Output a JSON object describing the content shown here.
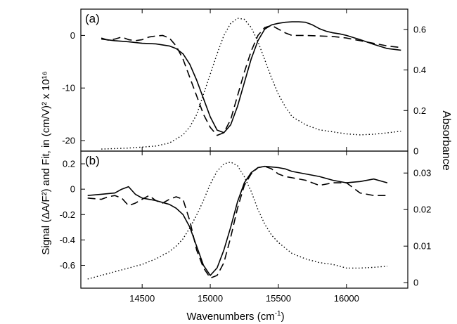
{
  "chart_data": {
    "type": "line",
    "xlabel_main": "Wavenumbers (cm",
    "xlabel_sup": "-1",
    "xlabel_tail": ")",
    "xlim": [
      14050,
      16450
    ],
    "xticks": [
      14500,
      15000,
      15500,
      16000
    ],
    "ylabel_left": "Signal (ΔA/F²) and Fit, in (cm/V)² x 10¹⁶",
    "ylabel_right": "Absorbance",
    "panels": [
      {
        "label": "(a)",
        "left_axis": {
          "lim": [
            -22,
            5
          ],
          "ticks": [
            0,
            -10,
            -20
          ]
        },
        "right_axis": {
          "lim": [
            0,
            0.7
          ],
          "ticks": [
            0,
            0.2,
            0.4,
            0.6
          ]
        },
        "series": [
          {
            "style": "solid",
            "axis": "left",
            "x": [
              14200,
              14300,
              14400,
              14500,
              14600,
              14700,
              14750,
              14800,
              14850,
              14900,
              14950,
              15000,
              15050,
              15100,
              15150,
              15200,
              15250,
              15300,
              15350,
              15400,
              15450,
              15500,
              15550,
              15600,
              15650,
              15700,
              15750,
              15800,
              15850,
              15900,
              15950,
              16000,
              16100,
              16200,
              16300,
              16400
            ],
            "y": [
              -0.7,
              -1,
              -1.2,
              -1.5,
              -1.6,
              -2,
              -2.5,
              -3.5,
              -5.5,
              -8.5,
              -12,
              -15.5,
              -18,
              -18.5,
              -17,
              -13.5,
              -9,
              -4.5,
              -1,
              1.2,
              2,
              2.3,
              2.5,
              2.6,
              2.6,
              2.5,
              2,
              1.3,
              0.8,
              0.5,
              0.3,
              0,
              -0.8,
              -1.7,
              -2.5,
              -2.8
            ]
          },
          {
            "style": "dashed",
            "axis": "left",
            "x": [
              14200,
              14250,
              14300,
              14350,
              14400,
              14450,
              14500,
              14550,
              14600,
              14650,
              14700,
              14750,
              14800,
              14850,
              14900,
              14950,
              15000,
              15050,
              15100,
              15150,
              15200,
              15250,
              15300,
              15350,
              15400,
              15450,
              15500,
              15550,
              15600,
              15700,
              15800,
              15900,
              16000,
              16100,
              16200,
              16300,
              16400
            ],
            "y": [
              -0.5,
              -0.9,
              -0.7,
              -0.3,
              -0.8,
              -1,
              -0.8,
              -0.3,
              -0.1,
              0,
              -0.5,
              -2,
              -4.5,
              -8,
              -11.5,
              -15,
              -17.5,
              -19,
              -18.5,
              -16,
              -11.5,
              -7,
              -3,
              0,
              1.5,
              1.9,
              1.2,
              0.5,
              0,
              0,
              -0.1,
              -0.2,
              -0.5,
              -1,
              -1.5,
              -2,
              -2.3
            ]
          },
          {
            "style": "dotted",
            "axis": "right",
            "x": [
              14200,
              14400,
              14600,
              14700,
              14800,
              14850,
              14900,
              14950,
              15000,
              15050,
              15100,
              15150,
              15200,
              15250,
              15300,
              15350,
              15400,
              15450,
              15500,
              15550,
              15600,
              15700,
              15800,
              15900,
              16000,
              16100,
              16200,
              16300,
              16400
            ],
            "y": [
              0.01,
              0.015,
              0.025,
              0.04,
              0.08,
              0.12,
              0.18,
              0.28,
              0.38,
              0.48,
              0.57,
              0.63,
              0.655,
              0.65,
              0.61,
              0.54,
              0.45,
              0.36,
              0.28,
              0.22,
              0.17,
              0.13,
              0.105,
              0.095,
              0.085,
              0.08,
              0.083,
              0.09,
              0.098
            ]
          }
        ]
      },
      {
        "label": "(b)",
        "left_axis": {
          "lim": [
            -0.78,
            0.3
          ],
          "ticks": [
            0.2,
            0,
            -0.2,
            -0.4,
            -0.6
          ]
        },
        "right_axis": {
          "lim": [
            -0.0015,
            0.036
          ],
          "ticks": [
            0,
            0.01,
            0.02,
            0.03
          ]
        },
        "series": [
          {
            "style": "solid",
            "axis": "left",
            "x": [
              14100,
              14200,
              14300,
              14350,
              14400,
              14450,
              14500,
              14600,
              14700,
              14750,
              14800,
              14850,
              14900,
              14950,
              15000,
              15050,
              15100,
              15150,
              15200,
              15250,
              15300,
              15350,
              15400,
              15450,
              15500,
              15550,
              15600,
              15700,
              15800,
              15900,
              16000,
              16100,
              16200,
              16300
            ],
            "y": [
              -0.05,
              -0.04,
              -0.03,
              0,
              0.02,
              -0.04,
              -0.07,
              -0.09,
              -0.12,
              -0.15,
              -0.2,
              -0.3,
              -0.45,
              -0.6,
              -0.68,
              -0.62,
              -0.48,
              -0.3,
              -0.1,
              0.05,
              0.13,
              0.17,
              0.18,
              0.175,
              0.17,
              0.16,
              0.14,
              0.12,
              0.1,
              0.07,
              0.05,
              0.06,
              0.08,
              0.05
            ]
          },
          {
            "style": "dashed",
            "axis": "left",
            "x": [
              14100,
              14200,
              14250,
              14300,
              14350,
              14400,
              14450,
              14500,
              14550,
              14600,
              14650,
              14700,
              14750,
              14800,
              14850,
              14900,
              14950,
              15000,
              15050,
              15100,
              15150,
              15200,
              15250,
              15300,
              15350,
              15400,
              15450,
              15500,
              15550,
              15600,
              15700,
              15800,
              15900,
              16000,
              16100,
              16200,
              16300
            ],
            "y": [
              -0.07,
              -0.08,
              -0.06,
              -0.05,
              -0.07,
              -0.13,
              -0.11,
              -0.08,
              -0.05,
              -0.09,
              -0.11,
              -0.08,
              -0.06,
              -0.08,
              -0.25,
              -0.48,
              -0.62,
              -0.7,
              -0.68,
              -0.58,
              -0.38,
              -0.15,
              0.03,
              0.12,
              0.17,
              0.18,
              0.16,
              0.12,
              0.1,
              0.09,
              0.07,
              0.03,
              0.05,
              0.05,
              -0.03,
              -0.05,
              -0.05
            ]
          },
          {
            "style": "dotted",
            "axis": "right",
            "x": [
              14100,
              14300,
              14500,
              14600,
              14700,
              14750,
              14800,
              14850,
              14900,
              14950,
              15000,
              15050,
              15100,
              15150,
              15200,
              15250,
              15300,
              15350,
              15400,
              15450,
              15500,
              15600,
              15700,
              15800,
              15900,
              16000,
              16100,
              16200,
              16300
            ],
            "y": [
              0.001,
              0.003,
              0.005,
              0.0065,
              0.0085,
              0.01,
              0.012,
              0.015,
              0.0185,
              0.0225,
              0.027,
              0.0305,
              0.0325,
              0.033,
              0.032,
              0.029,
              0.025,
              0.02,
              0.016,
              0.013,
              0.011,
              0.008,
              0.0065,
              0.0055,
              0.005,
              0.004,
              0.004,
              0.0042,
              0.0045
            ]
          }
        ]
      }
    ]
  }
}
